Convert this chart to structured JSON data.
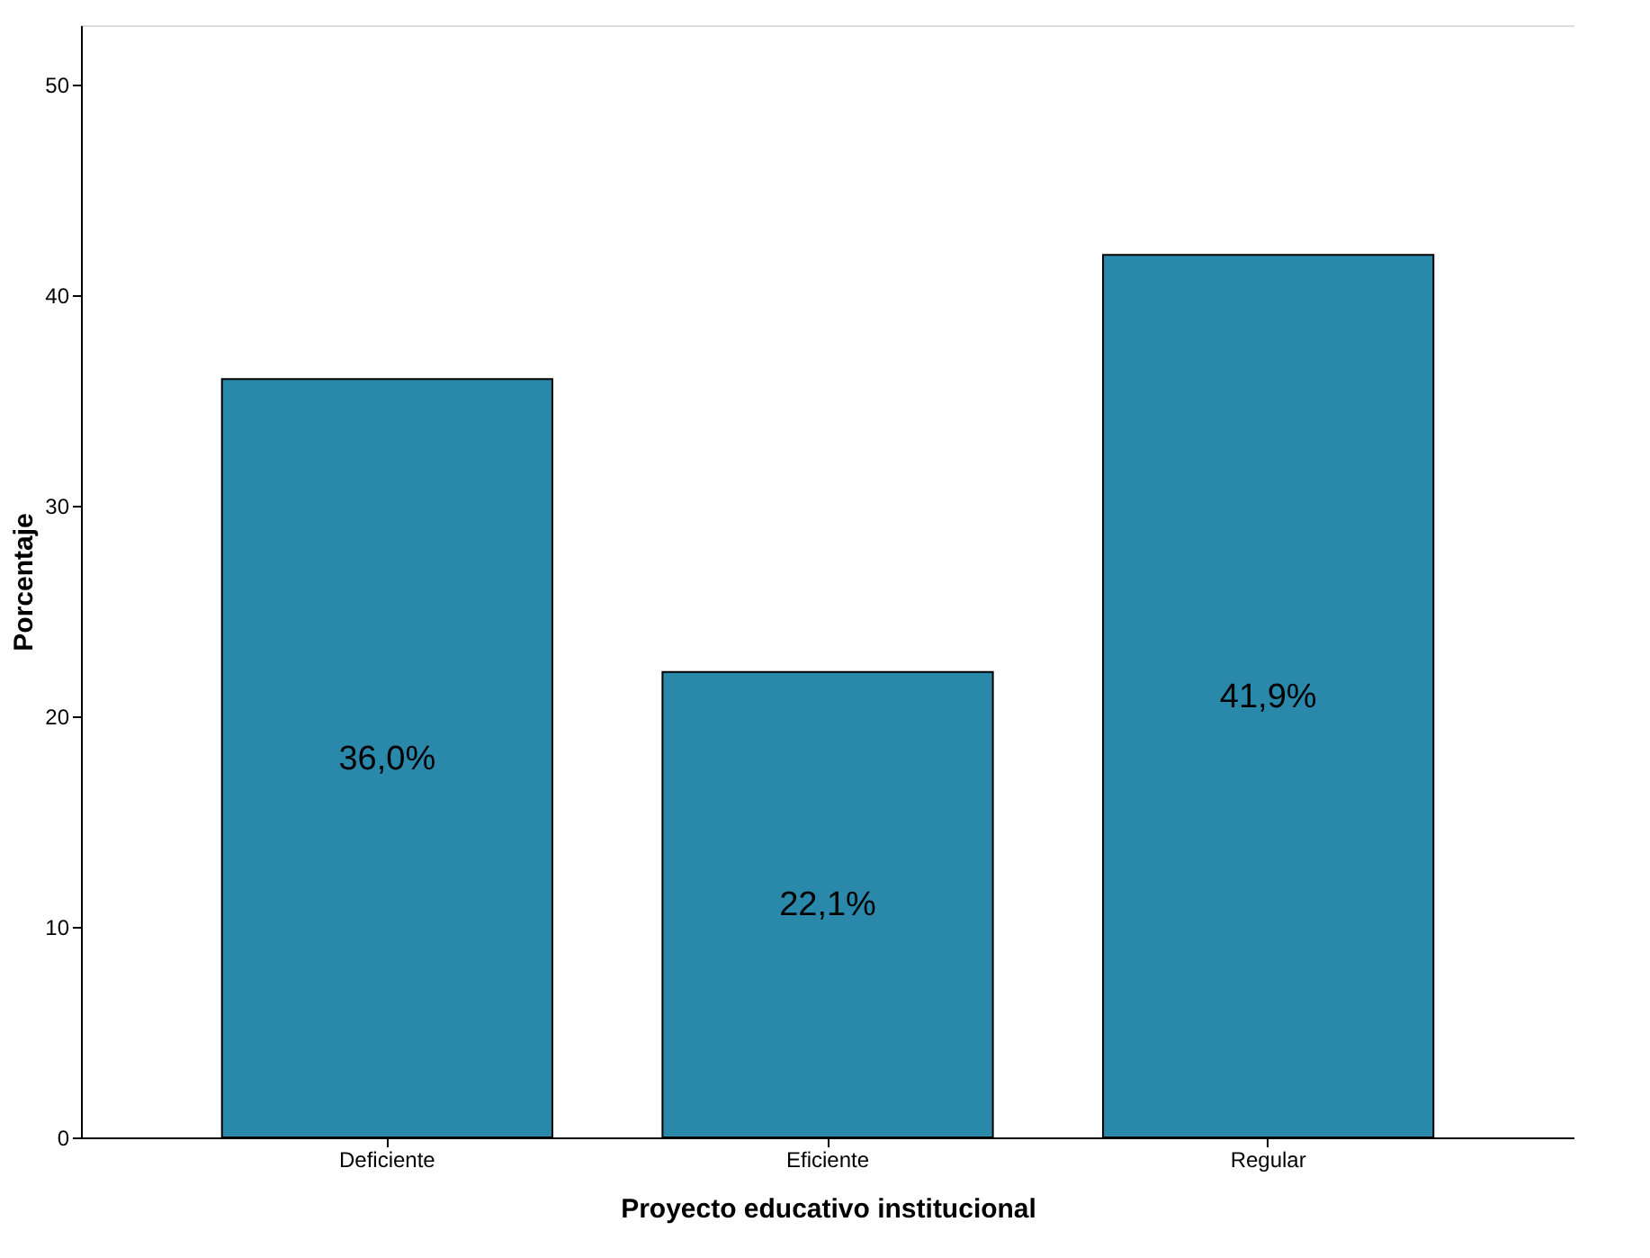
{
  "chart_data": {
    "type": "bar",
    "xlabel": "Proyecto educativo institucional",
    "ylabel": "Porcentaje",
    "categories": [
      "Deficiente",
      "Eficiente",
      "Regular"
    ],
    "values": [
      36.0,
      22.1,
      41.9
    ],
    "value_labels": [
      "36,0%",
      "22,1%",
      "41,9%"
    ],
    "color": "#2a88ab",
    "ylim": [
      0,
      52.8
    ],
    "yticks": [
      0,
      10,
      20,
      30,
      40,
      50
    ],
    "grid": false
  }
}
